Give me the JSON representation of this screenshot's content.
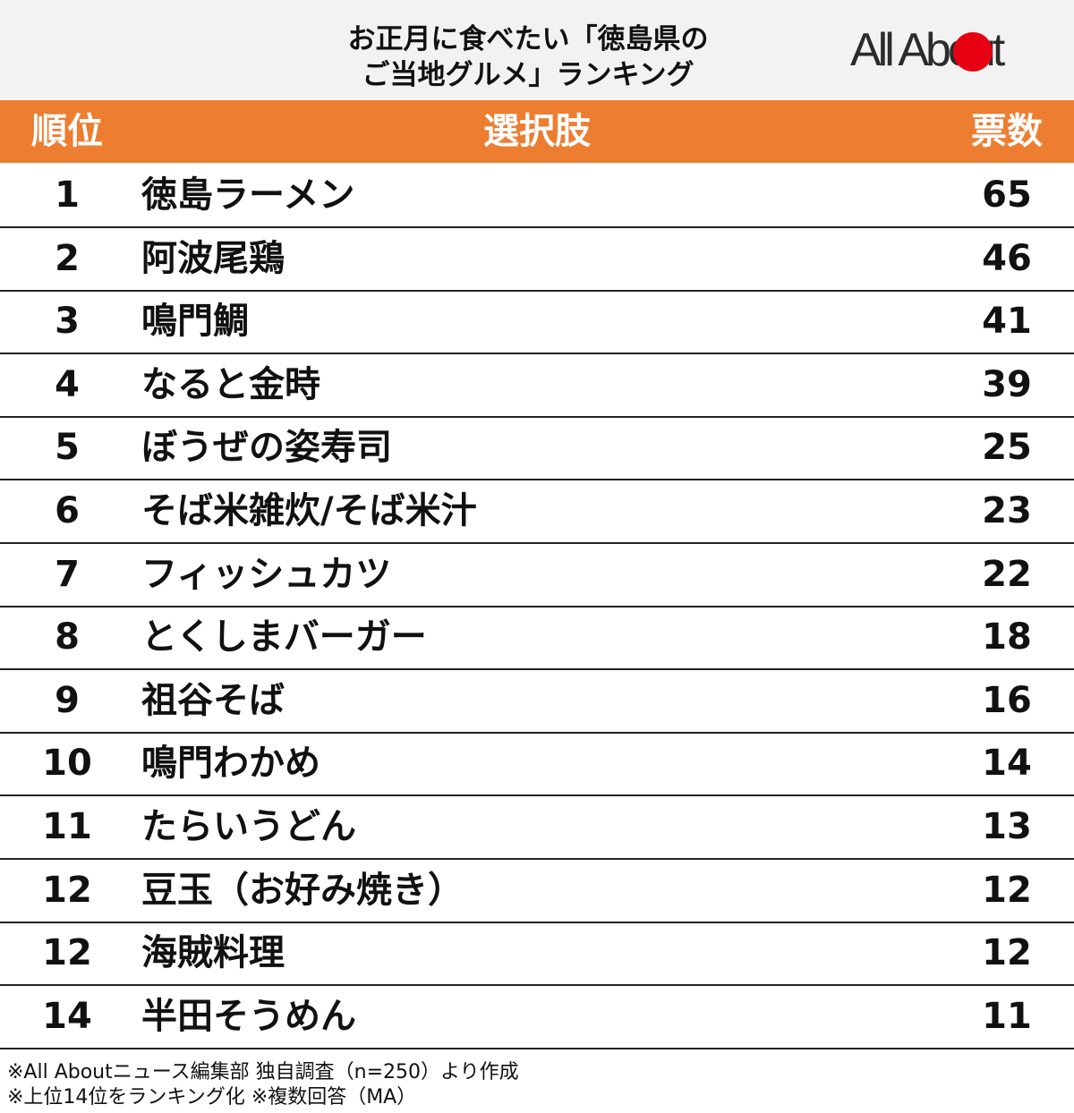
{
  "header": {
    "title_lines": [
      "お正月に食べたい「徳島県の",
      "ご当地グルメ」ランキング"
    ],
    "logo": "All About"
  },
  "table": {
    "columns": [
      "順位",
      "選択肢",
      "票数"
    ],
    "rows": [
      [
        1,
        "徳島ラーメン",
        65
      ],
      [
        2,
        "阿波尾鶏",
        46
      ],
      [
        3,
        "鳴門鯛",
        41
      ],
      [
        4,
        "なると金時",
        39
      ],
      [
        5,
        "ぼうぜの姿寿司",
        25
      ],
      [
        6,
        "そば米雑炊/そば米汁",
        23
      ],
      [
        7,
        "フィッシュカツ",
        22
      ],
      [
        8,
        "とくしまバーガー",
        18
      ],
      [
        9,
        "祖谷そば",
        16
      ],
      [
        10,
        "鳴門わかめ",
        14
      ],
      [
        11,
        "たらいうどん",
        13
      ],
      [
        12,
        "豆玉（お好み焼き）",
        12
      ],
      [
        12,
        "海賊料理",
        12
      ],
      [
        14,
        "半田そうめん",
        11
      ]
    ]
  },
  "notes": [
    "※All Aboutニュース編集部 独自調査（n=250）より作成",
    "※上位14位をランキング化 ※複数回答（MA）"
  ]
}
